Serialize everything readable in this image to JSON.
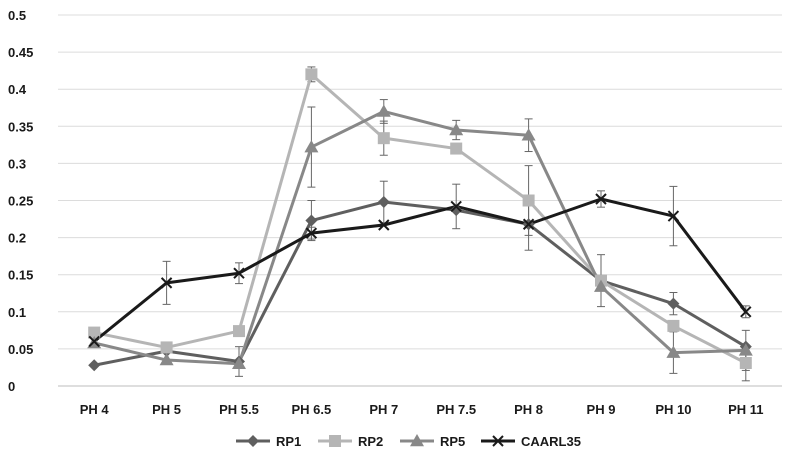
{
  "chart_data": {
    "type": "line",
    "title": "",
    "xlabel": "",
    "ylabel": "",
    "categories": [
      "PH 4",
      "PH 5",
      "PH 5.5",
      "PH 6.5",
      "PH 7",
      "PH 7.5",
      "PH 8",
      "PH 9",
      "PH 10",
      "PH 11"
    ],
    "ylim": [
      0,
      0.5
    ],
    "yticks": [
      "0",
      "0.05",
      "0.1",
      "0.15",
      "0.2",
      "0.25",
      "0.3",
      "0.35",
      "0.4",
      "0.45",
      "0.5"
    ],
    "grid": "horizontal",
    "legend_position": "bottom",
    "series": [
      {
        "name": "RP1",
        "color": "#5f5f5f",
        "marker": "diamond",
        "values": [
          0.028,
          0.047,
          0.033,
          0.223,
          0.248,
          0.237,
          0.218,
          0.142,
          0.111,
          0.053
        ],
        "errors": [
          0.0,
          0.0,
          0.02,
          0.027,
          0.028,
          0.0,
          0.0,
          0.0,
          0.015,
          0.0
        ]
      },
      {
        "name": "RP2",
        "color": "#b5b5b5",
        "marker": "square",
        "values": [
          0.072,
          0.052,
          0.074,
          0.42,
          0.334,
          0.32,
          0.25,
          0.142,
          0.081,
          0.031
        ],
        "errors": [
          0.0,
          0.0,
          0.0,
          0.01,
          0.023,
          0.0,
          0.047,
          0.035,
          0.0,
          0.024
        ]
      },
      {
        "name": "RP5",
        "color": "#888888",
        "marker": "triangle",
        "values": [
          0.058,
          0.035,
          0.03,
          0.322,
          0.37,
          0.345,
          0.338,
          0.134,
          0.045,
          0.048
        ],
        "errors": [
          0.0,
          0.0,
          0.0,
          0.054,
          0.016,
          0.013,
          0.022,
          0.0,
          0.028,
          0.027
        ]
      },
      {
        "name": "CAARL35",
        "color": "#1a1a1a",
        "marker": "x",
        "values": [
          0.06,
          0.139,
          0.152,
          0.206,
          0.217,
          0.242,
          0.218,
          0.252,
          0.229,
          0.1
        ],
        "errors": [
          0.0,
          0.029,
          0.014,
          0.008,
          0.0,
          0.03,
          0.035,
          0.011,
          0.04,
          0.008
        ]
      }
    ]
  }
}
